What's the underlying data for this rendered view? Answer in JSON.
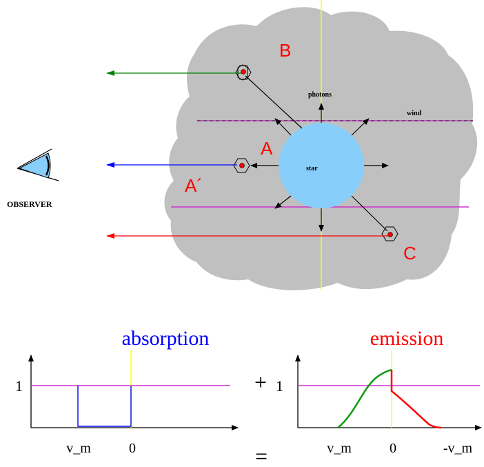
{
  "labels": {
    "region_b": "B",
    "region_a": "A",
    "region_a_prime": "A´",
    "region_c": "C",
    "photons": "photons",
    "wind": "wind",
    "star": "star",
    "observer": "OBSERVER"
  },
  "absorption_plot": {
    "title": "absorption",
    "y_tick": "1",
    "x_ticks": [
      "v_m",
      "0"
    ]
  },
  "emission_plot": {
    "title": "emission",
    "y_tick": "1",
    "x_ticks": [
      "v_m",
      "0",
      "-v_m"
    ]
  },
  "operators": {
    "plus": "+",
    "equals": "="
  },
  "colors": {
    "cloud": "#c0c0c0",
    "star": "#87cefa",
    "region_label": "#ff0000",
    "wind_line": "#cc33cc",
    "yellow_axis": "#ffff00",
    "ray_top": "#008000",
    "ray_middle": "#0000ff",
    "ray_bottom": "#ff0000",
    "absorption_title": "#0000ff",
    "emission_title": "#ff0000",
    "emission_green": "#119911",
    "emission_red": "#ff0000"
  }
}
